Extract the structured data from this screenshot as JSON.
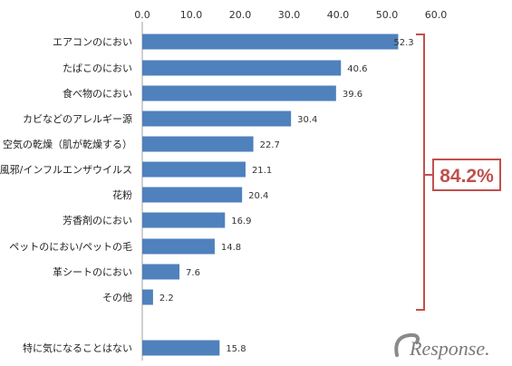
{
  "chart_data": {
    "type": "bar",
    "orientation": "horizontal",
    "categories": [
      "エアコンのにおい",
      "たばこのにおい",
      "食べ物のにおい",
      "カビなどのアレルギー源",
      "空気の乾燥（肌が乾燥する）",
      "風邪/インフルエンザウイルス",
      "花粉",
      "芳香剤のにおい",
      "ペットのにおい/ペットの毛",
      "革シートのにおい",
      "その他",
      "特に気になることはない"
    ],
    "values": [
      52.3,
      40.6,
      39.6,
      30.4,
      22.7,
      21.1,
      20.4,
      16.9,
      14.8,
      7.6,
      2.2,
      15.8
    ],
    "value_labels": [
      "52.3",
      "40.6",
      "39.6",
      "30.4",
      "22.7",
      "21.1",
      "20.4",
      "16.9",
      "14.8",
      "7.6",
      "2.2",
      "15.8"
    ],
    "xlim": [
      0,
      60
    ],
    "xticks": [
      "0.0",
      "10.0",
      "20.0",
      "30.0",
      "40.0",
      "50.0",
      "60.0"
    ],
    "x_axis_position": "top",
    "grid": false,
    "bar_color": "#4f81bd",
    "annotation": {
      "text": "84.2%",
      "spans_categories": "エアコンのにおい – その他",
      "color": "#c0504d"
    },
    "watermark": "Response."
  }
}
